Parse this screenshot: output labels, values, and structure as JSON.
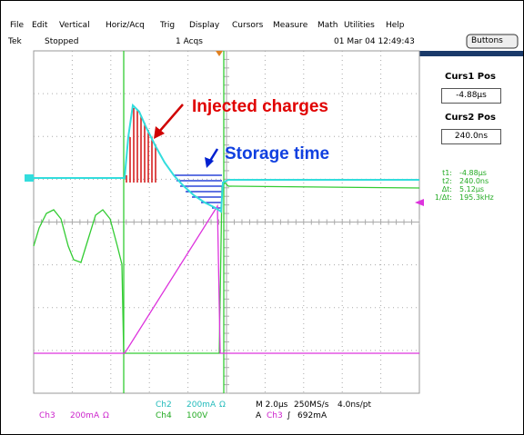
{
  "menu": [
    "File",
    "Edit",
    "Vertical",
    "Horiz/Acq",
    "Trig",
    "Display",
    "Cursors",
    "Measure",
    "Math",
    "Utilities",
    "Help"
  ],
  "status": {
    "brand": "Tek",
    "state": "Stopped",
    "acquisitions": "1 Acqs",
    "datetime": "01 Mar 04 12:49:43"
  },
  "panel": {
    "button": "Buttons",
    "cursors": [
      {
        "label": "Curs1 Pos",
        "value": "-4.88µs"
      },
      {
        "label": "Curs2 Pos",
        "value": "240.0ns"
      }
    ],
    "readouts": [
      {
        "label": "t1:",
        "value": "-4.88µs"
      },
      {
        "label": "t2:",
        "value": "240.0ns"
      },
      {
        "label": "Δt:",
        "value": "5.12µs"
      },
      {
        "label": "1/Δt:",
        "value": "195.3kHz"
      }
    ]
  },
  "annotations": {
    "injected": "Injected charges",
    "storage": "Storage time"
  },
  "footer": {
    "ch2": [
      "Ch2",
      "200mA",
      "Ω"
    ],
    "ch4": [
      "Ch4",
      "100V"
    ],
    "ch3": [
      "Ch3",
      "200mA",
      "Ω"
    ],
    "timebase": [
      "M 2.0µs",
      "250MS/s",
      "4.0ns/pt"
    ],
    "trigger": [
      "A",
      "Ch3",
      "∫",
      "692mA"
    ]
  }
}
